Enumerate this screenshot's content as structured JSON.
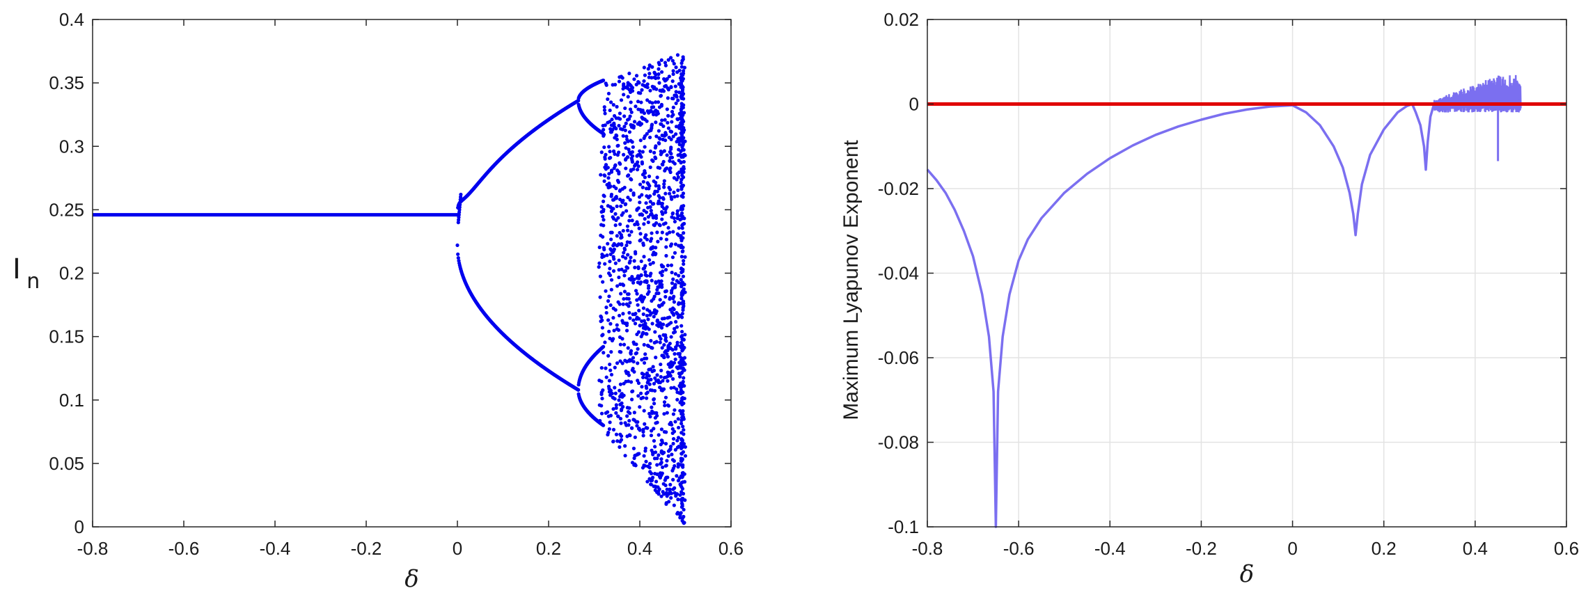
{
  "chart_data": [
    {
      "type": "scatter",
      "title": "",
      "xlabel": "δ",
      "ylabel_main": "I",
      "ylabel_sub": "n",
      "xlim": [
        -0.8,
        0.6
      ],
      "ylim": [
        0,
        0.4
      ],
      "xticks": [
        "-0.8",
        "-0.6",
        "-0.4",
        "-0.2",
        "0",
        "0.2",
        "0.4",
        "0.6"
      ],
      "yticks": [
        "0",
        "0.05",
        "0.1",
        "0.15",
        "0.2",
        "0.25",
        "0.3",
        "0.35",
        "0.4"
      ],
      "grid": false,
      "point_color": "#0000ee",
      "branches": {
        "fixed_point": {
          "x": [
            -0.8,
            0.0
          ],
          "y": 0.246
        },
        "period2": {
          "x_start": 0.0,
          "x_end": 0.265,
          "center": 0.222,
          "upper_end": 0.336,
          "lower_end": 0.108
        },
        "period4_upper": {
          "x_start": 0.265,
          "x_end": 0.32,
          "values_at_end": [
            0.35,
            0.31
          ]
        },
        "period4_lower": {
          "x_start": 0.265,
          "x_end": 0.32,
          "values_at_end": [
            0.14,
            0.08
          ]
        },
        "chaos_region": {
          "x": [
            0.31,
            0.5
          ],
          "y_min_start": 0.08,
          "y_max_start": 0.35,
          "y_min_end": 0.0,
          "y_max_end": 0.375
        }
      }
    },
    {
      "type": "line",
      "title": "",
      "xlabel": "δ",
      "ylabel": "Maximum Lyapunov Exponent",
      "xlim": [
        -0.8,
        0.6
      ],
      "ylim": [
        -0.1,
        0.02
      ],
      "xticks": [
        "-0.8",
        "-0.6",
        "-0.4",
        "-0.2",
        "0",
        "0.2",
        "0.4",
        "0.6"
      ],
      "yticks": [
        "-0.1",
        "-0.08",
        "-0.06",
        "-0.04",
        "-0.02",
        "0",
        "0.02"
      ],
      "grid": true,
      "series": [
        {
          "color": "#7b6ff0",
          "x": [
            -0.8,
            -0.78,
            -0.76,
            -0.74,
            -0.72,
            -0.7,
            -0.68,
            -0.665,
            -0.655,
            -0.65,
            -0.645,
            -0.635,
            -0.62,
            -0.6,
            -0.58,
            -0.55,
            -0.5,
            -0.45,
            -0.4,
            -0.35,
            -0.3,
            -0.25,
            -0.2,
            -0.15,
            -0.1,
            -0.05,
            0.0,
            0.03,
            0.06,
            0.09,
            0.11,
            0.125,
            0.133,
            0.138,
            0.143,
            0.152,
            0.17,
            0.2,
            0.23,
            0.25,
            0.262,
            0.27,
            0.28,
            0.288,
            0.292,
            0.296,
            0.302,
            0.31
          ],
          "y": [
            -0.0155,
            -0.018,
            -0.021,
            -0.025,
            -0.03,
            -0.036,
            -0.045,
            -0.055,
            -0.068,
            -0.1,
            -0.068,
            -0.055,
            -0.045,
            -0.037,
            -0.032,
            -0.027,
            -0.021,
            -0.0165,
            -0.0128,
            -0.0098,
            -0.0073,
            -0.0053,
            -0.0037,
            -0.0023,
            -0.0013,
            -0.0006,
            -0.0003,
            -0.002,
            -0.005,
            -0.01,
            -0.015,
            -0.021,
            -0.026,
            -0.031,
            -0.026,
            -0.019,
            -0.012,
            -0.006,
            -0.002,
            -0.0005,
            0.0,
            -0.002,
            -0.005,
            -0.01,
            -0.0155,
            -0.009,
            -0.003,
            0.0
          ]
        }
      ],
      "reference_line": {
        "y": 0,
        "color": "#e00000"
      },
      "chaotic_band": {
        "x": [
          0.31,
          0.5
        ],
        "y_low": -0.002,
        "y_high": 0.007,
        "dips": [
          {
            "x": 0.45,
            "y": -0.0135
          },
          {
            "x": 0.497,
            "y": -0.0015
          }
        ]
      }
    }
  ]
}
